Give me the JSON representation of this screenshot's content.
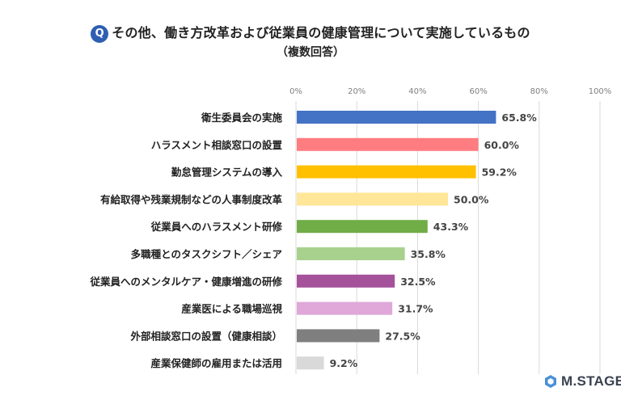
{
  "title": {
    "badge": "Q",
    "text": "その他、働き方改革および従業員の健康管理について実施しているもの",
    "subtitle": "（複数回答）"
  },
  "logo": {
    "text": "M.STAGE",
    "icon": "hexagon-logo-icon"
  },
  "chart_data": {
    "type": "bar",
    "orientation": "horizontal",
    "xlim": [
      0,
      100
    ],
    "x_ticks": [
      "0%",
      "20%",
      "40%",
      "60%",
      "80%",
      "100%"
    ],
    "x_tick_values": [
      0,
      20,
      40,
      60,
      80,
      100
    ],
    "grid": true,
    "categories": [
      "衛生委員会の実施",
      "ハラスメント相談窓口の設置",
      "勤怠管理システムの導入",
      "有給取得や残業規制などの人事制度改革",
      "従業員へのハラスメント研修",
      "多職種とのタスクシフト／シェア",
      "従業員へのメンタルケア・健康増進の研修",
      "産業医による職場巡視",
      "外部相談窓口の設置（健康相談）",
      "産業保健師の雇用または活用"
    ],
    "values": [
      65.8,
      60.0,
      59.2,
      50.0,
      43.3,
      35.8,
      32.5,
      31.7,
      27.5,
      9.2
    ],
    "value_labels": [
      "65.8%",
      "60.0%",
      "59.2%",
      "50.0%",
      "43.3%",
      "35.8%",
      "32.5%",
      "31.7%",
      "27.5%",
      "9.2%"
    ],
    "colors": [
      "#4472c4",
      "#ff7c80",
      "#ffc000",
      "#ffe699",
      "#70ad47",
      "#a9d18e",
      "#a5529b",
      "#dfa8d9",
      "#7f7f7f",
      "#d9d9d9"
    ]
  }
}
